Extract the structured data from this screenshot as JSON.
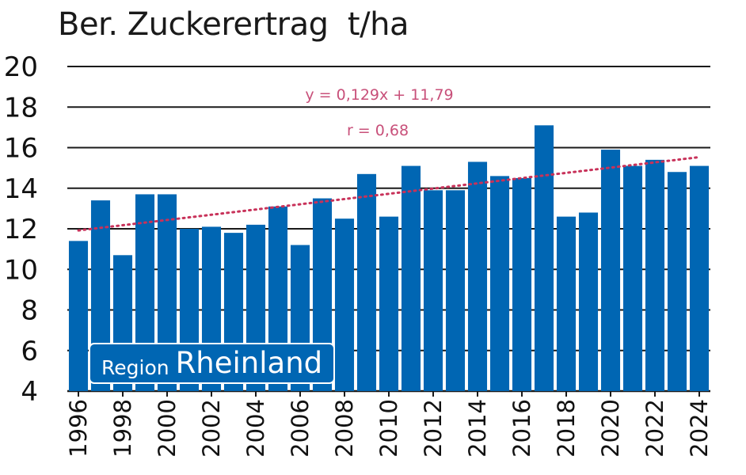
{
  "colors": {
    "bar": "#0066b3",
    "trend": "#c8325a",
    "annotation": "#c8507a",
    "grid": "#1a1a1a"
  },
  "badge": {
    "prefix": "Region",
    "name": "Rheinland"
  },
  "chart_data": {
    "type": "bar",
    "title": "Ber. Zuckerertrag  t/ha",
    "xlabel": "",
    "ylabel": "",
    "ylim": [
      4,
      20
    ],
    "yticks": [
      4,
      6,
      8,
      10,
      12,
      14,
      16,
      18,
      20
    ],
    "grid": true,
    "categories": [
      "1996",
      "1997",
      "1998",
      "1999",
      "2000",
      "2001",
      "2002",
      "2003",
      "2004",
      "2005",
      "2006",
      "2007",
      "2008",
      "2009",
      "2010",
      "2011",
      "2012",
      "2013",
      "2014",
      "2015",
      "2016",
      "2017",
      "2018",
      "2019",
      "2020",
      "2021",
      "2022",
      "2023",
      "2024"
    ],
    "xtick_labels": [
      "1996",
      "1998",
      "2000",
      "2002",
      "2004",
      "2006",
      "2008",
      "2010",
      "2012",
      "2014",
      "2016",
      "2018",
      "2020",
      "2022",
      "2024"
    ],
    "values": [
      11.4,
      13.4,
      10.7,
      13.7,
      13.7,
      12.0,
      12.1,
      11.8,
      12.2,
      13.1,
      11.2,
      13.5,
      12.5,
      14.7,
      12.6,
      15.1,
      13.9,
      13.9,
      15.3,
      14.6,
      14.5,
      17.1,
      12.6,
      12.8,
      15.9,
      15.1,
      15.4,
      14.8,
      15.1
    ],
    "trendline": {
      "slope": 0.129,
      "intercept": 11.79
    },
    "annotations": [
      "y = 0,129x + 11,79",
      "r = 0,68"
    ]
  }
}
